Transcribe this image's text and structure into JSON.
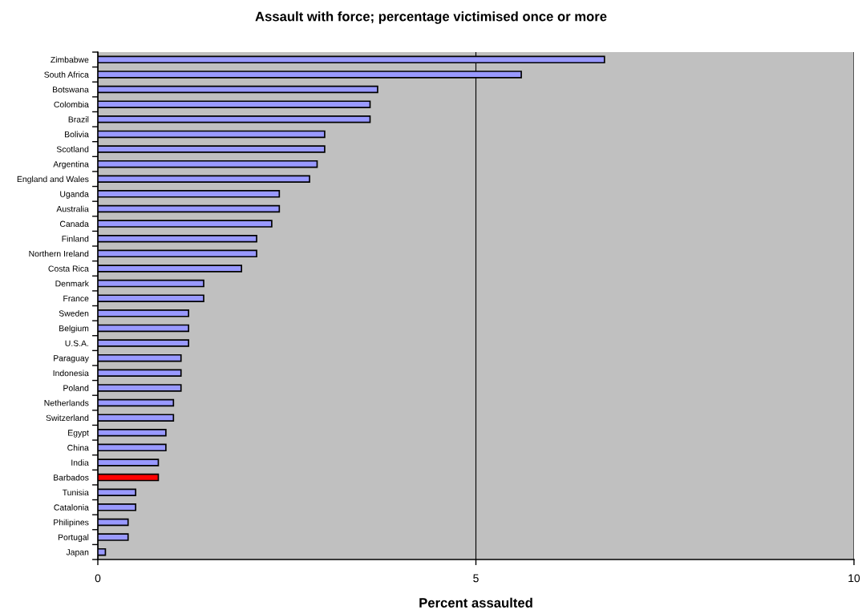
{
  "chart_data": {
    "type": "bar",
    "orientation": "horizontal",
    "title": "Assault with force; percentage victimised once or more",
    "xlabel": "Percent assaulted",
    "categories": [
      "Zimbabwe",
      "South Africa",
      "Botswana",
      "Colombia",
      "Brazil",
      "Bolivia",
      "Scotland",
      "Argentina",
      "England and Wales",
      "Uganda",
      "Australia",
      "Canada",
      "Finland",
      "Northern Ireland",
      "Costa Rica",
      "Denmark",
      "France",
      "Sweden",
      "Belgium",
      "U.S.A.",
      "Paraguay",
      "Indonesia",
      "Poland",
      "Netherlands",
      "Switzerland",
      "Egypt",
      "China",
      "India",
      "Barbados",
      "Tunisia",
      "Catalonia",
      "Philipines",
      "Portugal",
      "Japan"
    ],
    "values": [
      6.7,
      5.6,
      3.7,
      3.6,
      3.6,
      3.0,
      3.0,
      2.9,
      2.8,
      2.4,
      2.4,
      2.3,
      2.1,
      2.1,
      1.9,
      1.4,
      1.4,
      1.2,
      1.2,
      1.2,
      1.1,
      1.1,
      1.1,
      1.0,
      1.0,
      0.9,
      0.9,
      0.8,
      0.8,
      0.5,
      0.5,
      0.4,
      0.4,
      0.1
    ],
    "colors": [
      "#9999ff",
      "#9999ff",
      "#9999ff",
      "#9999ff",
      "#9999ff",
      "#9999ff",
      "#9999ff",
      "#9999ff",
      "#9999ff",
      "#9999ff",
      "#9999ff",
      "#9999ff",
      "#9999ff",
      "#9999ff",
      "#9999ff",
      "#9999ff",
      "#9999ff",
      "#9999ff",
      "#9999ff",
      "#9999ff",
      "#9999ff",
      "#9999ff",
      "#9999ff",
      "#9999ff",
      "#9999ff",
      "#9999ff",
      "#9999ff",
      "#9999ff",
      "#ff0000",
      "#9999ff",
      "#9999ff",
      "#9999ff",
      "#9999ff",
      "#9999ff"
    ],
    "xlim": [
      0,
      10
    ],
    "xticks": [
      0,
      5,
      10
    ],
    "grid": "x",
    "legend": false
  }
}
